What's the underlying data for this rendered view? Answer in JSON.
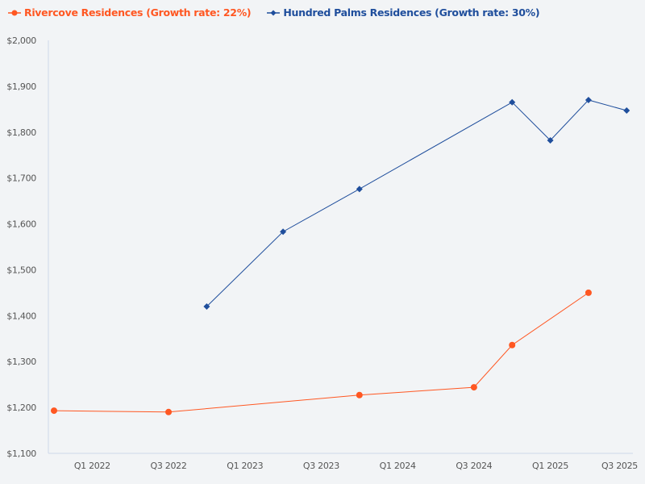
{
  "chart_data": {
    "type": "line",
    "title": "",
    "xlabel": "",
    "ylabel": "",
    "x": [
      "Q4 2021",
      "Q1 2022",
      "Q2 2022",
      "Q3 2022",
      "Q4 2022",
      "Q1 2023",
      "Q2 2023",
      "Q3 2023",
      "Q4 2023",
      "Q1 2024",
      "Q2 2024",
      "Q3 2024",
      "Q4 2024",
      "Q1 2025",
      "Q2 2025",
      "Q3 2025"
    ],
    "x_tick_labels": [
      "Q1 2022",
      "Q3 2022",
      "Q1 2023",
      "Q3 2023",
      "Q1 2024",
      "Q3 2024",
      "Q1 2025",
      "Q3 2025"
    ],
    "ylim": [
      1100,
      2000
    ],
    "y_ticks": [
      1100,
      1200,
      1300,
      1400,
      1500,
      1600,
      1700,
      1800,
      1900,
      2000
    ],
    "y_tick_labels": [
      "$1,100",
      "$1,200",
      "$1,300",
      "$1,400",
      "$1,500",
      "$1,600",
      "$1,700",
      "$1,800",
      "$1,900",
      "$2,000"
    ],
    "grid": false,
    "legend_placement": "top-left",
    "series": [
      {
        "name": "Rivercove Residences (Growth rate: 22%)",
        "color": "#ff5722",
        "marker": "circle",
        "points": [
          [
            "Q4 2021",
            1193
          ],
          [
            "Q3 2022",
            1190
          ],
          [
            "Q4 2023",
            1227
          ],
          [
            "Q3 2024",
            1244
          ],
          [
            "Q4 2024",
            1336
          ],
          [
            "Q2 2025",
            1450
          ]
        ]
      },
      {
        "name": "Hundred Palms Residences (Growth rate: 30%)",
        "color": "#1f4e9c",
        "marker": "diamond",
        "points": [
          [
            "Q4 2022",
            1420
          ],
          [
            "Q2 2023",
            1583
          ],
          [
            "Q4 2023",
            1676
          ],
          [
            "Q4 2024",
            1865
          ],
          [
            "Q1 2025",
            1782
          ],
          [
            "Q2 2025",
            1870
          ],
          [
            "Q3 2025",
            1847
          ]
        ]
      }
    ]
  }
}
